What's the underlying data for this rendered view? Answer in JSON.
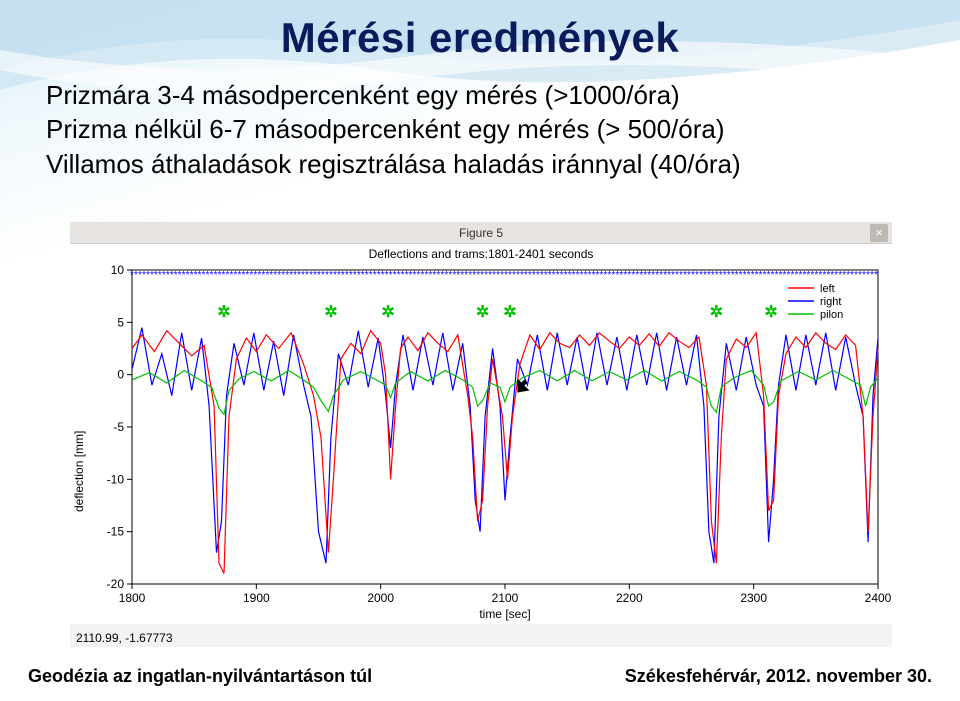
{
  "title": "Mérési eredmények",
  "bullets": {
    "b1": "Prizmára 3-4 másodpercenként egy mérés (>1000/óra)",
    "b2": "Prizma nélkül 6-7 másodpercenként egy mérés (> 500/óra)",
    "b3": "Villamos áthaladások regisztrálása haladás iránnyal (40/óra)"
  },
  "figure": {
    "window_title": "Figure 5",
    "subtitle": "Deflections and trams:1801-2401 seconds",
    "close_glyph": "×",
    "bg_color": "#f4f3f2",
    "plot_bg": "#ffffff",
    "xlabel": "time [sec]",
    "ylabel": "deflection [mm]",
    "xlim": [
      1800,
      2400
    ],
    "ylim": [
      -20,
      10
    ],
    "xticks": [
      1800,
      1900,
      2000,
      2100,
      2200,
      2300,
      2400
    ],
    "yticks": [
      -20,
      -15,
      -10,
      -5,
      0,
      5,
      10
    ],
    "grid_color": "#e0e0e0",
    "coord_readout": "2110.99, -1.67773",
    "legend": [
      {
        "label": "left",
        "color": "#ff0000"
      },
      {
        "label": "right",
        "color": "#0000ff"
      },
      {
        "label": "pilon",
        "color": "#00c000"
      }
    ],
    "pilon_markers_x": [
      1874,
      1960,
      2006,
      2082,
      2104,
      2270,
      2314
    ],
    "pilon_marker_color": "#00c000",
    "band_top": {
      "color": "#0000ff",
      "y": 9.5
    },
    "series": {
      "left": {
        "color": "#ff0000",
        "width": 1.2,
        "points": [
          [
            1800,
            2.5
          ],
          [
            1808,
            3.8
          ],
          [
            1818,
            2.2
          ],
          [
            1828,
            4.2
          ],
          [
            1838,
            3.0
          ],
          [
            1848,
            1.8
          ],
          [
            1858,
            2.8
          ],
          [
            1866,
            -3
          ],
          [
            1870,
            -18
          ],
          [
            1874,
            -19
          ],
          [
            1878,
            -4
          ],
          [
            1884,
            1.5
          ],
          [
            1892,
            3.5
          ],
          [
            1900,
            2.2
          ],
          [
            1908,
            3.8
          ],
          [
            1918,
            2.5
          ],
          [
            1928,
            4.0
          ],
          [
            1938,
            1.0
          ],
          [
            1946,
            -2
          ],
          [
            1952,
            -6
          ],
          [
            1958,
            -17
          ],
          [
            1962,
            -10
          ],
          [
            1968,
            1.5
          ],
          [
            1976,
            3.0
          ],
          [
            1984,
            2.0
          ],
          [
            1992,
            4.2
          ],
          [
            2000,
            3.0
          ],
          [
            2004,
            0
          ],
          [
            2008,
            -10
          ],
          [
            2012,
            -3
          ],
          [
            2016,
            2.5
          ],
          [
            2022,
            3.6
          ],
          [
            2030,
            2.3
          ],
          [
            2038,
            4.0
          ],
          [
            2046,
            3.0
          ],
          [
            2054,
            2.2
          ],
          [
            2062,
            3.8
          ],
          [
            2070,
            -2
          ],
          [
            2074,
            -6
          ],
          [
            2078,
            -14
          ],
          [
            2082,
            -12
          ],
          [
            2086,
            -3
          ],
          [
            2090,
            1.5
          ],
          [
            2098,
            -4
          ],
          [
            2102,
            -10
          ],
          [
            2106,
            -4
          ],
          [
            2112,
            1.0
          ],
          [
            2120,
            3.8
          ],
          [
            2128,
            2.4
          ],
          [
            2136,
            4.0
          ],
          [
            2144,
            3.0
          ],
          [
            2152,
            2.6
          ],
          [
            2160,
            3.8
          ],
          [
            2168,
            2.8
          ],
          [
            2176,
            4.0
          ],
          [
            2184,
            3.2
          ],
          [
            2192,
            2.5
          ],
          [
            2200,
            3.6
          ],
          [
            2208,
            2.8
          ],
          [
            2216,
            3.9
          ],
          [
            2224,
            2.7
          ],
          [
            2232,
            4.0
          ],
          [
            2240,
            3.2
          ],
          [
            2248,
            2.6
          ],
          [
            2256,
            3.6
          ],
          [
            2262,
            -1
          ],
          [
            2266,
            -14
          ],
          [
            2270,
            -18
          ],
          [
            2274,
            -6
          ],
          [
            2278,
            1.5
          ],
          [
            2286,
            3.4
          ],
          [
            2294,
            2.6
          ],
          [
            2302,
            4.0
          ],
          [
            2308,
            -2
          ],
          [
            2312,
            -13
          ],
          [
            2316,
            -12
          ],
          [
            2320,
            -2
          ],
          [
            2326,
            2.0
          ],
          [
            2334,
            3.6
          ],
          [
            2342,
            2.6
          ],
          [
            2350,
            4.0
          ],
          [
            2358,
            3.0
          ],
          [
            2366,
            2.4
          ],
          [
            2374,
            3.8
          ],
          [
            2382,
            2.8
          ],
          [
            2388,
            -4
          ],
          [
            2392,
            -15
          ],
          [
            2396,
            -4
          ],
          [
            2400,
            2.5
          ]
        ]
      },
      "right": {
        "color": "#0000ff",
        "width": 1.2,
        "points": [
          [
            1800,
            0.5
          ],
          [
            1808,
            4.5
          ],
          [
            1816,
            -1
          ],
          [
            1824,
            2.0
          ],
          [
            1832,
            -2
          ],
          [
            1840,
            4.0
          ],
          [
            1848,
            -1.5
          ],
          [
            1856,
            3.5
          ],
          [
            1862,
            -3
          ],
          [
            1868,
            -17
          ],
          [
            1872,
            -14
          ],
          [
            1876,
            -2
          ],
          [
            1882,
            3.0
          ],
          [
            1890,
            -1
          ],
          [
            1898,
            4.0
          ],
          [
            1906,
            -1.5
          ],
          [
            1914,
            3.2
          ],
          [
            1922,
            -2
          ],
          [
            1930,
            3.8
          ],
          [
            1938,
            -1
          ],
          [
            1944,
            -4
          ],
          [
            1950,
            -15
          ],
          [
            1956,
            -18
          ],
          [
            1960,
            -6
          ],
          [
            1966,
            2.0
          ],
          [
            1974,
            -1
          ],
          [
            1982,
            4.2
          ],
          [
            1990,
            -1.2
          ],
          [
            1998,
            3.5
          ],
          [
            2004,
            -2
          ],
          [
            2008,
            -7
          ],
          [
            2012,
            -1
          ],
          [
            2018,
            3.8
          ],
          [
            2026,
            -1.5
          ],
          [
            2034,
            3.6
          ],
          [
            2042,
            -1
          ],
          [
            2050,
            4.0
          ],
          [
            2058,
            -1.5
          ],
          [
            2066,
            3.0
          ],
          [
            2072,
            -3
          ],
          [
            2076,
            -12
          ],
          [
            2080,
            -15
          ],
          [
            2084,
            -4
          ],
          [
            2090,
            2.5
          ],
          [
            2096,
            -3
          ],
          [
            2100,
            -12
          ],
          [
            2104,
            -6
          ],
          [
            2110,
            1.5
          ],
          [
            2118,
            -1
          ],
          [
            2126,
            3.8
          ],
          [
            2134,
            -1.5
          ],
          [
            2142,
            4.0
          ],
          [
            2150,
            -1
          ],
          [
            2158,
            3.6
          ],
          [
            2166,
            -1.5
          ],
          [
            2174,
            4.0
          ],
          [
            2182,
            -1
          ],
          [
            2190,
            3.6
          ],
          [
            2198,
            -1.5
          ],
          [
            2206,
            3.8
          ],
          [
            2214,
            -1
          ],
          [
            2222,
            4.0
          ],
          [
            2230,
            -1.5
          ],
          [
            2238,
            3.6
          ],
          [
            2246,
            -1
          ],
          [
            2254,
            3.8
          ],
          [
            2260,
            -3
          ],
          [
            2264,
            -15
          ],
          [
            2268,
            -18
          ],
          [
            2272,
            -4
          ],
          [
            2278,
            3.0
          ],
          [
            2286,
            -1.5
          ],
          [
            2294,
            3.6
          ],
          [
            2302,
            -1
          ],
          [
            2308,
            -3
          ],
          [
            2312,
            -16
          ],
          [
            2316,
            -10
          ],
          [
            2320,
            -1
          ],
          [
            2326,
            3.8
          ],
          [
            2334,
            -1.5
          ],
          [
            2342,
            3.8
          ],
          [
            2350,
            -1
          ],
          [
            2358,
            4.0
          ],
          [
            2366,
            -1.5
          ],
          [
            2374,
            3.6
          ],
          [
            2382,
            -1
          ],
          [
            2388,
            -4
          ],
          [
            2392,
            -16
          ],
          [
            2396,
            -2
          ],
          [
            2400,
            3.5
          ]
        ]
      },
      "pilon": {
        "color": "#00c000",
        "width": 1.2,
        "points": [
          [
            1800,
            -0.5
          ],
          [
            1814,
            0.2
          ],
          [
            1828,
            -0.8
          ],
          [
            1842,
            0.4
          ],
          [
            1856,
            -0.6
          ],
          [
            1864,
            -1.2
          ],
          [
            1870,
            -3.2
          ],
          [
            1874,
            -3.8
          ],
          [
            1878,
            -1.5
          ],
          [
            1886,
            -0.4
          ],
          [
            1898,
            0.3
          ],
          [
            1912,
            -0.6
          ],
          [
            1926,
            0.4
          ],
          [
            1938,
            -0.5
          ],
          [
            1946,
            -1.2
          ],
          [
            1952,
            -2.5
          ],
          [
            1958,
            -3.5
          ],
          [
            1962,
            -2.0
          ],
          [
            1970,
            -0.5
          ],
          [
            1984,
            0.3
          ],
          [
            1998,
            -0.6
          ],
          [
            2004,
            -1.0
          ],
          [
            2008,
            -2.2
          ],
          [
            2012,
            -0.8
          ],
          [
            2024,
            0.3
          ],
          [
            2038,
            -0.6
          ],
          [
            2052,
            0.4
          ],
          [
            2066,
            -0.5
          ],
          [
            2074,
            -1.2
          ],
          [
            2078,
            -3.0
          ],
          [
            2082,
            -2.5
          ],
          [
            2088,
            -0.8
          ],
          [
            2096,
            -1.2
          ],
          [
            2100,
            -2.6
          ],
          [
            2104,
            -1.2
          ],
          [
            2114,
            -0.3
          ],
          [
            2128,
            0.4
          ],
          [
            2142,
            -0.6
          ],
          [
            2156,
            0.4
          ],
          [
            2170,
            -0.6
          ],
          [
            2184,
            0.3
          ],
          [
            2198,
            -0.5
          ],
          [
            2212,
            0.4
          ],
          [
            2226,
            -0.6
          ],
          [
            2240,
            0.3
          ],
          [
            2254,
            -0.5
          ],
          [
            2262,
            -1.2
          ],
          [
            2266,
            -3.0
          ],
          [
            2270,
            -3.6
          ],
          [
            2274,
            -1.2
          ],
          [
            2284,
            -0.3
          ],
          [
            2298,
            0.4
          ],
          [
            2308,
            -1.0
          ],
          [
            2312,
            -3.0
          ],
          [
            2316,
            -2.6
          ],
          [
            2322,
            -0.6
          ],
          [
            2336,
            0.3
          ],
          [
            2350,
            -0.5
          ],
          [
            2364,
            0.4
          ],
          [
            2378,
            -0.5
          ],
          [
            2386,
            -1.0
          ],
          [
            2390,
            -3.0
          ],
          [
            2394,
            -1.2
          ],
          [
            2400,
            -0.3
          ]
        ]
      }
    }
  },
  "footer": {
    "left": "Geodézia az ingatlan-nyilvántartáson  túl",
    "right": "Székesfehérvár, 2012. november 30."
  },
  "wave_colors": [
    "#bcdcee",
    "#d0e8f5",
    "#e4f2fa"
  ]
}
